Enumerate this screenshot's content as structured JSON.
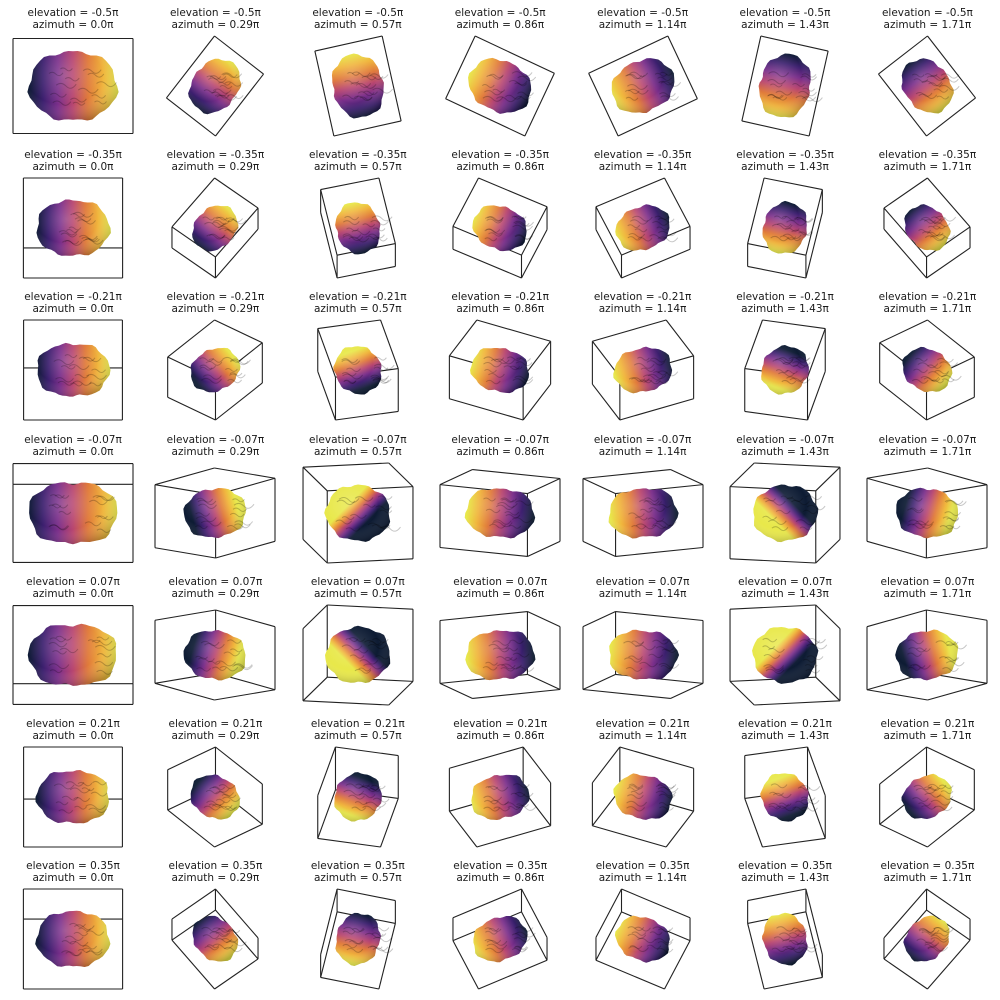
{
  "figure": {
    "rows": [
      {
        "elevation": "elevation = -0.5π",
        "azimuths": [
          "azimuth = 0.0π",
          "azimuth = 0.29π",
          "azimuth = 0.57π",
          "azimuth = 0.86π",
          "azimuth = 1.14π",
          "azimuth = 1.43π",
          "azimuth = 1.71π"
        ]
      },
      {
        "elevation": "elevation = -0.35π",
        "azimuths": [
          "azimuth = 0.0π",
          "azimuth = 0.29π",
          "azimuth = 0.57π",
          "azimuth = 0.86π",
          "azimuth = 1.14π",
          "azimuth = 1.43π",
          "azimuth = 1.71π"
        ]
      },
      {
        "elevation": "elevation = -0.21π",
        "azimuths": [
          "azimuth = 0.0π",
          "azimuth = 0.29π",
          "azimuth = 0.57π",
          "azimuth = 0.86π",
          "azimuth = 1.14π",
          "azimuth = 1.43π",
          "azimuth = 1.71π"
        ]
      },
      {
        "elevation": "elevation = -0.07π",
        "azimuths": [
          "azimuth = 0.0π",
          "azimuth = 0.29π",
          "azimuth = 0.57π",
          "azimuth = 0.86π",
          "azimuth = 1.14π",
          "azimuth = 1.43π",
          "azimuth = 1.71π"
        ]
      },
      {
        "elevation": "elevation = 0.07π",
        "azimuths": [
          "azimuth = 0.0π",
          "azimuth = 0.29π",
          "azimuth = 0.57π",
          "azimuth = 0.86π",
          "azimuth = 1.14π",
          "azimuth = 1.43π",
          "azimuth = 1.71π"
        ]
      },
      {
        "elevation": "elevation = 0.21π",
        "azimuths": [
          "azimuth = 0.0π",
          "azimuth = 0.29π",
          "azimuth = 0.57π",
          "azimuth = 0.86π",
          "azimuth = 1.14π",
          "azimuth = 1.43π",
          "azimuth = 1.71π"
        ]
      },
      {
        "elevation": "elevation = 0.35π",
        "azimuths": [
          "azimuth = 0.0π",
          "azimuth = 0.29π",
          "azimuth = 0.57π",
          "azimuth = 0.86π",
          "azimuth = 1.14π",
          "azimuth = 1.43π",
          "azimuth = 1.71π"
        ]
      }
    ],
    "elevation_values_pi": [
      -0.5,
      -0.35,
      -0.21,
      -0.07,
      0.07,
      0.21,
      0.35
    ],
    "azimuth_values_pi": [
      0.0,
      0.29,
      0.57,
      0.86,
      1.14,
      1.43,
      1.71
    ],
    "colormap": [
      "#0d1b33",
      "#3b1f6e",
      "#7a2e8a",
      "#b8456f",
      "#e07a3a",
      "#f0b43c",
      "#e8e84a"
    ],
    "box_color": "#222222"
  }
}
